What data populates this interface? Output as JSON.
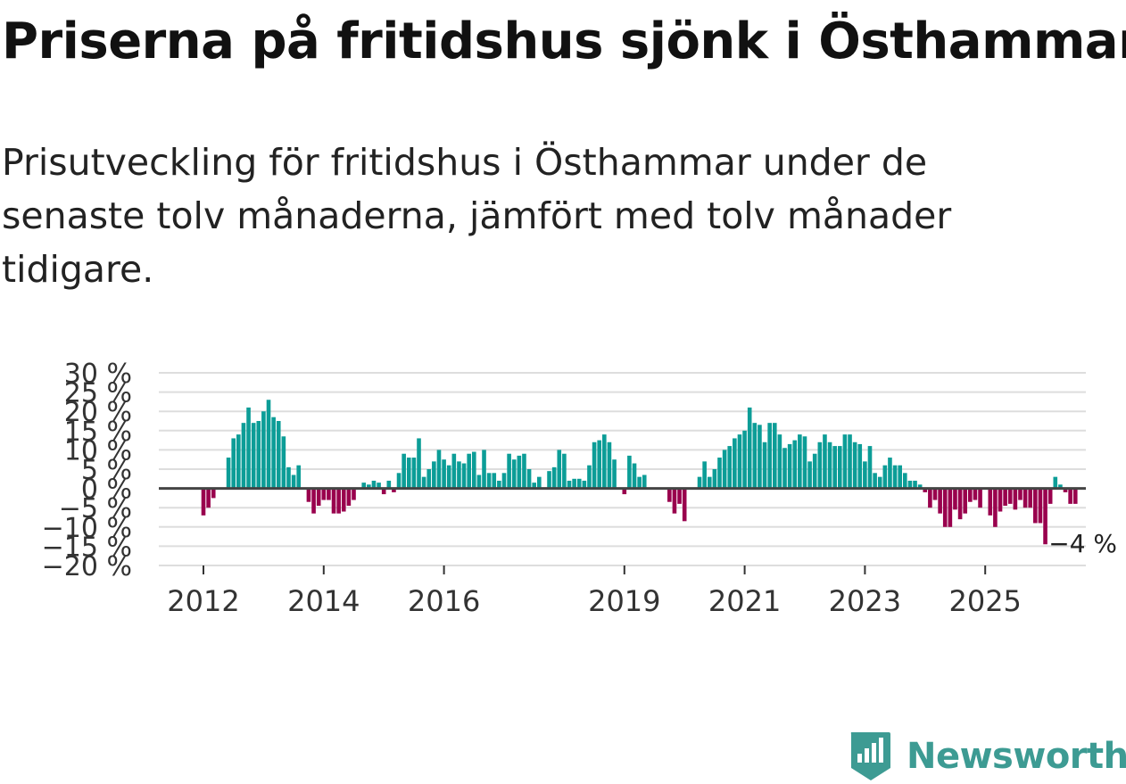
{
  "title": "Priserna på fritidshus sjönk i Östhammar",
  "subtitle": "Prisutveckling för fritidshus i Östhammar under de senaste tolv månaderna, jämfört med tolv månader tidigare.",
  "brand": {
    "name": "Newsworthy",
    "icon": "newsworthy-logo-icon",
    "color": "#3d9b93"
  },
  "colors": {
    "positive": "#0c9d97",
    "negative": "#99004d",
    "grid": "#dddddd",
    "zero": "#444444"
  },
  "chart_data": {
    "type": "bar",
    "title": "Prisutveckling för fritidshus i Östhammar",
    "ylabel": "",
    "xlabel": "",
    "ylim": [
      -20,
      30
    ],
    "y_ticks": [
      30,
      25,
      20,
      15,
      10,
      5,
      0,
      -5,
      -10,
      -15,
      -20
    ],
    "y_tick_labels": [
      "30 %",
      "25 %",
      "20 %",
      "15 %",
      "10 %",
      "5 %",
      "0 %",
      "−5 %",
      "−10 %",
      "−15 %",
      "−20 %"
    ],
    "x_tick_labels": [
      "2012",
      "2014",
      "2016",
      "2019",
      "2021",
      "2023",
      "2025"
    ],
    "x_tick_positions": [
      2012.0,
      2014.0,
      2016.0,
      2019.0,
      2021.0,
      2023.0,
      2025.0
    ],
    "start": 2012.0,
    "step": 0.08333,
    "annotation": {
      "label": "−4 %",
      "value": -4
    },
    "values": [
      -7,
      -5,
      -2.5,
      null,
      null,
      8,
      13,
      14,
      17,
      21,
      17,
      17.5,
      20,
      23,
      18.5,
      17.5,
      13.5,
      5.5,
      3.5,
      6,
      null,
      -3.5,
      -6.5,
      -4.5,
      -3,
      -3,
      -6.5,
      -6.5,
      -6,
      -4.5,
      -3,
      null,
      1.5,
      1,
      2,
      1.5,
      -1.5,
      2,
      -1,
      4,
      9,
      8,
      8,
      13,
      3,
      5,
      7,
      10,
      7.5,
      6,
      9,
      7,
      6.5,
      9,
      9.5,
      3.5,
      10,
      4,
      4,
      2,
      4,
      9,
      7.5,
      8.5,
      9,
      5,
      1.5,
      3,
      null,
      4.5,
      5.5,
      10,
      9,
      2,
      2.5,
      2.5,
      2,
      6,
      12,
      12.5,
      14,
      12,
      7.5,
      null,
      -1.5,
      8.5,
      6.5,
      3,
      3.5,
      null,
      null,
      null,
      null,
      -3.5,
      -6.5,
      -4,
      -8.5,
      null,
      null,
      3,
      7,
      3,
      5,
      8,
      10,
      11,
      13,
      14,
      15,
      21,
      17,
      16.5,
      12,
      17,
      17,
      14,
      10.5,
      11.5,
      12.5,
      14,
      13.5,
      7,
      9,
      12,
      14,
      12,
      11,
      11,
      14,
      14,
      12,
      11.5,
      7,
      11,
      4,
      3,
      6,
      8,
      6,
      6,
      4,
      2,
      2,
      1,
      -1,
      -5,
      -3,
      -6.5,
      -10,
      -10,
      -5.5,
      -8,
      -6.5,
      -3.5,
      -3,
      -5,
      null,
      -7,
      -10,
      -6,
      -4.5,
      -4,
      -5.5,
      -3,
      -5,
      -5,
      -9,
      -9,
      -14.5,
      -4,
      3,
      1,
      -1,
      -4,
      -4
    ]
  }
}
